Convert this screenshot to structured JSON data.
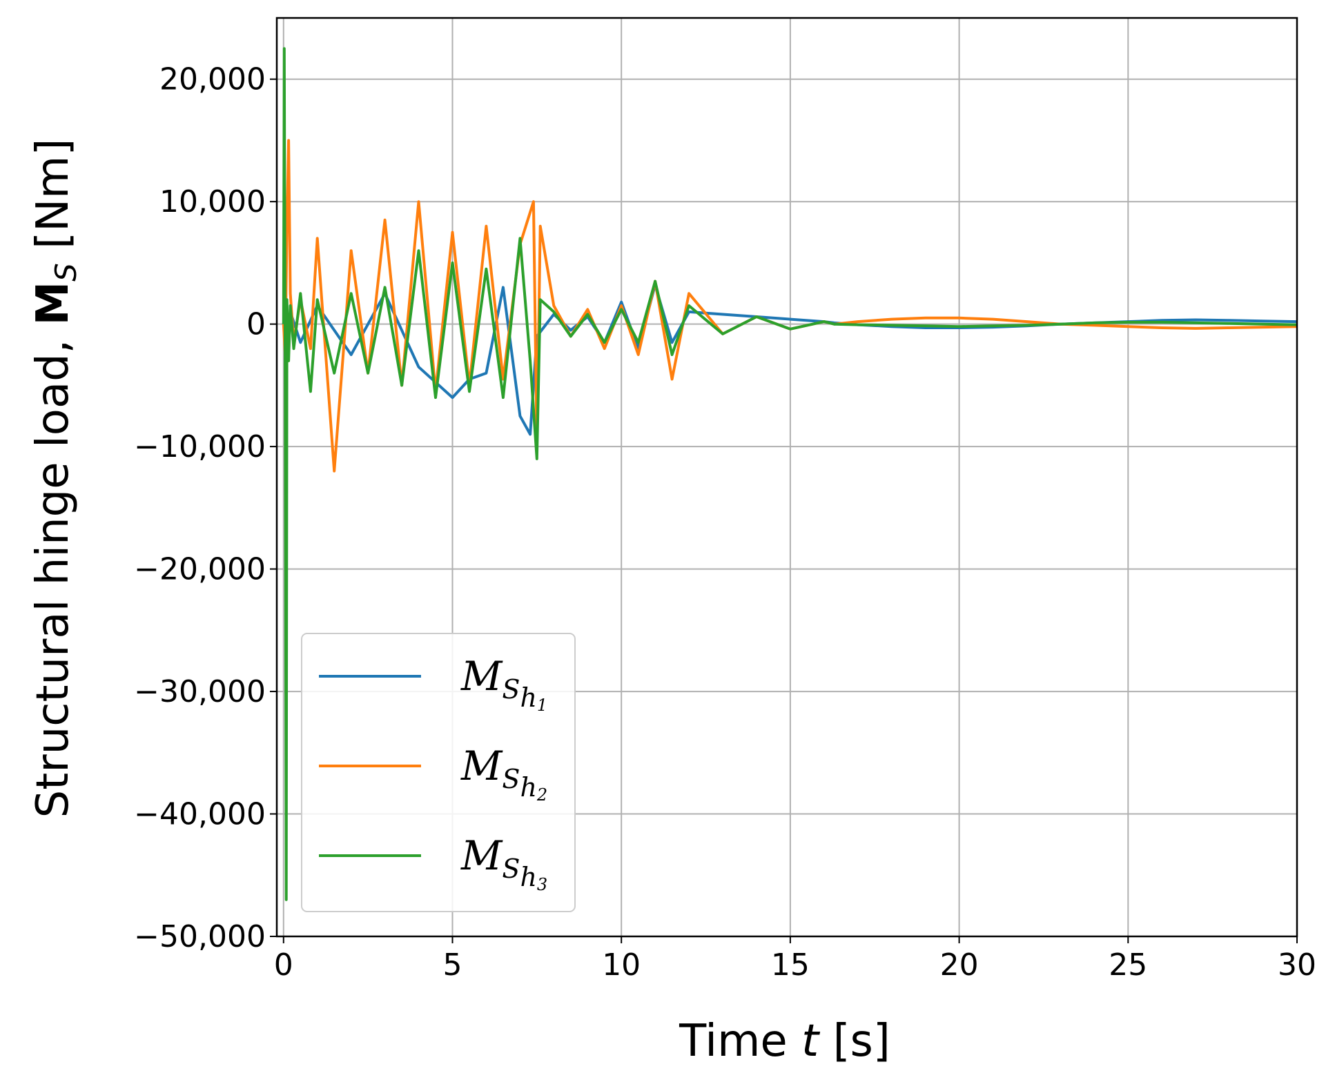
{
  "chart_data": {
    "type": "line",
    "xlabel_prefix": "Time ",
    "xlabel_var": "t",
    "xlabel_suffix": " [s]",
    "ylabel_prefix": "Structural hinge load, ",
    "ylabel_symbol": "M",
    "ylabel_subscript": "S",
    "ylabel_suffix": " [Nm]",
    "xlim": [
      -0.2,
      30
    ],
    "ylim": [
      -50000,
      25000
    ],
    "xticks": [
      0,
      5,
      10,
      15,
      20,
      25,
      30
    ],
    "xtick_labels": [
      "0",
      "5",
      "10",
      "15",
      "20",
      "25",
      "30"
    ],
    "yticks": [
      20000,
      10000,
      0,
      -10000,
      -20000,
      -30000,
      -40000,
      -50000
    ],
    "ytick_labels": [
      "20,000",
      "10,000",
      "0",
      "−10,000",
      "−20,000",
      "−30,000",
      "−40,000",
      "−50,000"
    ],
    "grid": true,
    "legend_position": "lower-left",
    "series": [
      {
        "name": "M",
        "name_sub": "S",
        "name_subsub": "h",
        "name_index": "1",
        "color": "#1f77b4",
        "x": [
          0,
          0.05,
          0.1,
          0.2,
          0.5,
          1,
          2,
          3,
          4,
          5,
          5.5,
          6,
          6.5,
          7,
          7.3,
          7.5,
          8,
          8.5,
          9,
          9.5,
          10,
          10.5,
          11,
          11.5,
          12,
          13,
          14,
          15,
          16,
          16.3,
          17,
          18,
          19,
          20,
          21,
          22,
          23,
          24,
          25,
          26,
          27,
          28,
          29,
          30
        ],
        "values": [
          0,
          1500,
          -2000,
          1000,
          -1500,
          1500,
          -2500,
          2500,
          -3500,
          -6000,
          -4500,
          -4000,
          3000,
          -7500,
          -9000,
          -1000,
          800,
          -500,
          600,
          -1500,
          1800,
          -2000,
          3200,
          -1500,
          1000,
          800,
          600,
          400,
          200,
          100,
          -50,
          -200,
          -300,
          -300,
          -250,
          -150,
          0,
          100,
          200,
          300,
          350,
          300,
          250,
          200
        ]
      },
      {
        "name": "M",
        "name_sub": "S",
        "name_subsub": "h",
        "name_index": "2",
        "color": "#ff7f0e",
        "x": [
          0,
          0.05,
          0.1,
          0.15,
          0.2,
          0.3,
          0.5,
          0.8,
          1,
          1.5,
          2,
          2.5,
          3,
          3.5,
          4,
          4.5,
          5,
          5.5,
          6,
          6.5,
          7,
          7.4,
          7.5,
          7.6,
          8,
          8.5,
          9,
          9.5,
          10,
          10.5,
          11,
          11.5,
          12,
          13,
          14,
          15,
          16,
          16.3,
          17,
          18,
          19,
          20,
          21,
          22,
          23,
          24,
          25,
          26,
          27,
          28,
          29,
          30
        ],
        "values": [
          0,
          -2500,
          8000,
          15000,
          2500,
          -1500,
          2000,
          -2000,
          7000,
          -12000,
          6000,
          -4000,
          8500,
          -5000,
          10000,
          -5500,
          7500,
          -5000,
          8000,
          -4500,
          6500,
          10000,
          -10000,
          8000,
          1500,
          -1000,
          1200,
          -2000,
          1500,
          -2500,
          3500,
          -4500,
          2500,
          -800,
          600,
          -400,
          200,
          0,
          200,
          400,
          500,
          500,
          400,
          200,
          0,
          -100,
          -200,
          -300,
          -350,
          -300,
          -250,
          -200
        ]
      },
      {
        "name": "M",
        "name_sub": "S",
        "name_subsub": "h",
        "name_index": "3",
        "color": "#2ca02c",
        "x": [
          0,
          0.02,
          0.05,
          0.08,
          0.1,
          0.15,
          0.2,
          0.3,
          0.5,
          0.8,
          1,
          1.5,
          2,
          2.5,
          3,
          3.5,
          4,
          4.5,
          5,
          5.5,
          6,
          6.5,
          7,
          7.3,
          7.5,
          7.6,
          8,
          8.5,
          9,
          9.5,
          10,
          10.5,
          11,
          11.5,
          12,
          13,
          14,
          15,
          16,
          16.3,
          17,
          18,
          19,
          20,
          21,
          22,
          23,
          24,
          25,
          26,
          27,
          28,
          29,
          30
        ],
        "values": [
          0,
          22500,
          -5000,
          -47000,
          2000,
          -3000,
          1500,
          -2000,
          2500,
          -5500,
          2000,
          -4000,
          2500,
          -4000,
          3000,
          -5000,
          6000,
          -6000,
          5000,
          -5500,
          4500,
          -6000,
          7000,
          -3000,
          -11000,
          2000,
          1000,
          -1000,
          800,
          -1500,
          1200,
          -1500,
          3500,
          -2500,
          1500,
          -800,
          600,
          -400,
          200,
          0,
          -50,
          -100,
          -150,
          -200,
          -150,
          -100,
          0,
          100,
          150,
          150,
          100,
          50,
          0,
          -50
        ]
      }
    ]
  }
}
